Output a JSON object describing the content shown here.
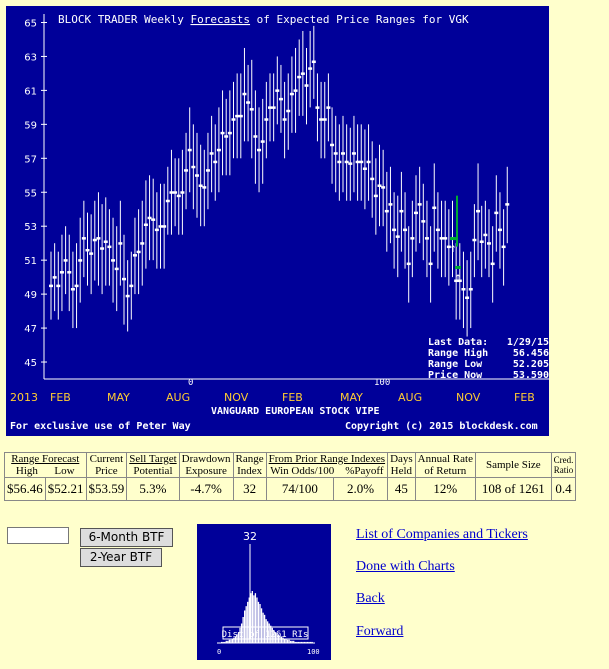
{
  "chart": {
    "title_parts": [
      "BLOCK TRADER Weekly ",
      "Forecasts",
      " of Expected Price Ranges for VGK"
    ],
    "y_ticks": [
      "65",
      "63",
      "61",
      "59",
      "57",
      "55",
      "53",
      "51",
      "49",
      "47",
      "45"
    ],
    "x_labels": [
      "2013",
      "FEB",
      "MAY",
      "AUG",
      "NOV",
      "FEB",
      "MAY",
      "AUG",
      "NOV",
      "FEB"
    ],
    "marker_0": "0",
    "marker_100": "100",
    "fund_name": "VANGUARD EUROPEAN STOCK VIPE",
    "exclusive_text": "For exclusive use of Peter Way",
    "copyright_text": "Copyright (c) 2015 blockdesk.com",
    "info": {
      "last_data_label": "Last Data:",
      "last_data_value": "1/29/15",
      "range_high_label": "Range High",
      "range_high_value": "56.456",
      "range_low_label": "Range Low",
      "range_low_value": "52.205",
      "price_now_label": "Price Now",
      "price_now_value": "53.590"
    },
    "colors": {
      "background": "#000099",
      "text": "#ffffff",
      "axis_labels": "#ffcc33",
      "highlight": "#00aa33"
    }
  },
  "chart_data": {
    "type": "range-bars",
    "title": "BLOCK TRADER Weekly Forecasts of Expected Price Ranges for VGK",
    "xlabel": "VANGUARD EUROPEAN STOCK VIPE",
    "ylim": [
      44,
      65.5
    ],
    "y_ticks": [
      65,
      63,
      61,
      59,
      57,
      55,
      53,
      51,
      49,
      47,
      45
    ],
    "grid": false,
    "series": [
      {
        "name": "",
        "x": [
          1,
          2,
          3,
          4,
          5,
          6,
          7,
          8,
          9,
          10,
          11,
          12,
          13,
          14,
          15,
          16,
          17,
          18,
          19,
          20,
          21,
          22,
          23,
          24,
          25,
          26,
          27,
          28,
          29,
          30,
          31,
          32,
          33,
          34,
          35,
          36,
          37,
          38,
          39,
          40,
          41,
          42,
          43,
          44,
          45,
          46,
          47,
          48,
          49,
          50,
          51,
          52,
          53,
          54,
          55,
          56,
          57,
          58,
          59,
          60,
          61,
          62,
          63,
          64,
          65,
          66,
          67,
          68,
          69,
          70,
          71,
          72,
          73,
          74,
          75,
          76,
          77,
          78,
          79,
          80,
          81,
          82,
          83,
          84,
          85,
          86,
          87,
          88,
          89,
          90,
          91,
          92,
          93,
          94,
          95,
          96,
          97,
          98,
          99,
          100,
          101,
          102,
          103,
          104,
          105,
          106,
          107,
          108,
          109,
          110,
          111,
          112,
          113,
          114,
          115,
          116,
          117,
          118,
          119,
          120,
          121,
          122,
          123,
          124,
          125,
          126
        ],
        "high": [
          51.5,
          52,
          51.5,
          52.5,
          53,
          52.5,
          51.5,
          52,
          53.5,
          54.5,
          53.8,
          53.7,
          54.5,
          55,
          54.3,
          54.7,
          54,
          53.5,
          53,
          54.5,
          52.5,
          51,
          51.5,
          53.5,
          54,
          54.5,
          55.7,
          56,
          55.8,
          55,
          55.5,
          55.5,
          56.5,
          57.5,
          57,
          57,
          57.5,
          58.5,
          60,
          59,
          58.5,
          57.8,
          57.5,
          58.5,
          59.5,
          59,
          60,
          61,
          60.5,
          61,
          61.5,
          62,
          62,
          63.5,
          62.5,
          62.8,
          61,
          60,
          60.5,
          61.5,
          62,
          62,
          63,
          62.5,
          61.5,
          62,
          63,
          63.5,
          64,
          64.5,
          63.5,
          64.5,
          64.8,
          62,
          61.5,
          61.5,
          62,
          60,
          59.5,
          59,
          59.5,
          59,
          58.8,
          59.5,
          59,
          59,
          58.7,
          59,
          58,
          57,
          57.8,
          57.5,
          56.2,
          56.5,
          55,
          54.8,
          56.2,
          55,
          53,
          54.5,
          56,
          56.5,
          55.5,
          54.5,
          53,
          56.7,
          55,
          54.5,
          54.5,
          54,
          54.5,
          52,
          52,
          51.5,
          51,
          51.5,
          54.3,
          56.7,
          54.2,
          54.5,
          54,
          53,
          56,
          55,
          54,
          56.5
        ],
        "low": [
          47.5,
          48,
          47.5,
          48,
          49,
          48,
          47,
          47,
          48.5,
          50,
          49.5,
          49,
          49.8,
          49.5,
          49,
          49.5,
          49.5,
          48.5,
          48,
          49.5,
          47.2,
          46.8,
          47.5,
          49,
          49,
          49.5,
          50.5,
          51,
          51,
          50.5,
          50.5,
          50.5,
          52.5,
          52.5,
          53,
          52.5,
          52.5,
          54,
          55,
          54,
          53.5,
          53,
          53,
          54,
          55,
          54.5,
          55,
          56,
          56,
          56,
          57,
          57,
          57,
          58,
          58,
          57,
          55.5,
          55,
          55.5,
          57,
          58,
          58,
          59,
          58.5,
          57,
          57.5,
          58.5,
          58.5,
          59.5,
          59.5,
          59,
          60,
          60.5,
          58,
          57,
          57,
          58,
          55.5,
          55,
          54.5,
          55,
          54.5,
          54.5,
          55,
          54.5,
          54.5,
          54,
          54.5,
          53.5,
          52.5,
          53,
          53,
          51.5,
          52,
          50.5,
          50,
          51.5,
          50.5,
          48.5,
          50,
          51.5,
          52,
          51,
          50,
          48.5,
          51.5,
          50.5,
          50,
          50,
          49.5,
          50,
          47.5,
          47.5,
          47,
          46.5,
          47,
          50,
          51,
          50,
          50.5,
          50,
          48.5,
          51.5,
          50.5,
          49.5,
          52
        ],
        "mid": [
          49.5,
          50,
          49.5,
          50.3,
          51,
          50.3,
          49.3,
          49.5,
          51,
          52.3,
          51.6,
          51.4,
          52.2,
          52.3,
          51.7,
          52.1,
          51.8,
          51,
          50.5,
          52,
          49.9,
          48.9,
          49.5,
          51.3,
          51.5,
          52,
          53.1,
          53.5,
          53.4,
          52.8,
          53,
          53,
          54.5,
          55,
          55,
          54.8,
          55,
          56.3,
          57.5,
          56.5,
          56,
          55.4,
          55.3,
          56.3,
          57.3,
          56.8,
          57.5,
          58.5,
          58.3,
          58.5,
          59.3,
          59.5,
          59.5,
          60.8,
          60.3,
          59.9,
          58.3,
          57.5,
          58,
          59.3,
          60,
          60,
          61,
          60.5,
          59.3,
          59.8,
          60.8,
          61,
          61.8,
          62,
          61.3,
          62.3,
          62.7,
          60,
          59.3,
          59.3,
          60,
          57.8,
          57.3,
          56.8,
          57.3,
          56.8,
          56.7,
          57.3,
          56.8,
          56.8,
          56.4,
          56.8,
          55.8,
          54.8,
          55.4,
          55.3,
          53.9,
          54.3,
          52.8,
          52.4,
          53.9,
          52.8,
          50.8,
          52.3,
          53.8,
          54.3,
          53.3,
          52.3,
          50.8,
          54.1,
          52.8,
          52.3,
          52.3,
          51.8,
          52.3,
          49.8,
          49.8,
          49.3,
          48.8,
          49.3,
          52.2,
          53.9,
          52.1,
          52.5,
          52,
          50.8,
          53.8,
          52.8,
          51.8,
          54.3
        ]
      }
    ],
    "highlight_range": {
      "high": 54.8,
      "low": 51.8,
      "mark": 52.3
    },
    "highlight_point": 50.6
  },
  "stats": {
    "h_range_forecast": "Range Forecast",
    "h_high": "High",
    "h_low": "Low",
    "h_current_1": "Current",
    "h_current_2": "Price",
    "h_sell_target_1": "Sell Target",
    "h_sell_target_2": "Potential",
    "h_drawdown_1": "Drawdown",
    "h_drawdown_2": "Exposure",
    "h_range_1": "Range",
    "h_range_2": "Index",
    "h_from_prior": "From Prior Range Indexes",
    "h_win_odds": "Win Odds/100",
    "h_payoff": "%Payoff",
    "h_days_1": "Days",
    "h_days_2": "Held",
    "h_annual_1": "Annual Rate",
    "h_annual_2": "of Return",
    "h_sample": "Sample Size",
    "h_cred_1": "Cred.",
    "h_cred_2": "Ratio",
    "v_high": "$56.46",
    "v_low": "$52.21",
    "v_current": "$53.59",
    "v_sell_target": "5.3%",
    "v_drawdown": "-4.7%",
    "v_range_index": "32",
    "v_win_odds": "74/100",
    "v_payoff": "2.0%",
    "v_days": "45",
    "v_annual": "12%",
    "v_sample": "108 of 1261",
    "v_cred": "0.4"
  },
  "controls": {
    "ticker_value": "",
    "btn_6m": "6-Month BTF",
    "btn_2y": "2-Year BTF"
  },
  "histogram": {
    "index_label": "32",
    "caption": "Dist of 1261 RIs",
    "axis_min": "0",
    "axis_max": "100",
    "current_index": 32,
    "counts": [
      1,
      1,
      1,
      2,
      2,
      3,
      3,
      4,
      5,
      6,
      8,
      10,
      14,
      18,
      24,
      30,
      34,
      38,
      42,
      46,
      48,
      44,
      46,
      42,
      38,
      36,
      32,
      28,
      26,
      22,
      20,
      18,
      16,
      14,
      12,
      10,
      9,
      8,
      7,
      6,
      5,
      4,
      4,
      3,
      3,
      2,
      2,
      2,
      1,
      1,
      1,
      1,
      1,
      1,
      1,
      1,
      1,
      1,
      1,
      1
    ]
  },
  "links": {
    "list": "List of Companies and Tickers",
    "done": "Done with Charts",
    "back": "Back",
    "forward": "Forward"
  }
}
